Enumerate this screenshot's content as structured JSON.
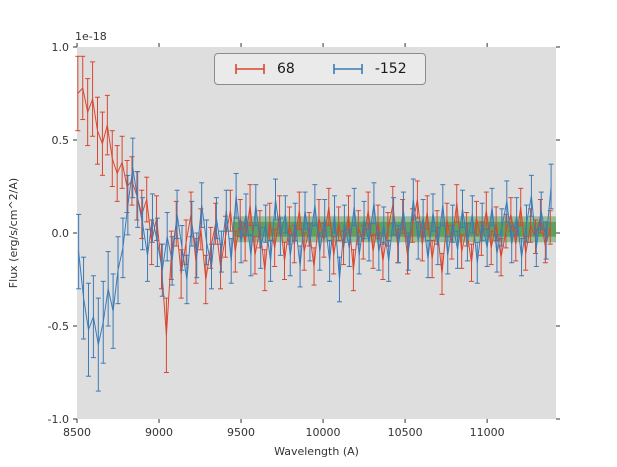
{
  "figure": {
    "background": "#ffffff",
    "axes_background": "#dedede",
    "tick_color": "#333333"
  },
  "chart_data": {
    "type": "line",
    "title": "",
    "offset_text": "1e-18",
    "xlabel": "Wavelength (A)",
    "ylabel": "Flux (erg/s/cm^2/A)",
    "xlim": [
      8500,
      11420
    ],
    "ylim": [
      -1.0,
      1.0
    ],
    "x_ticks": [
      8500,
      9000,
      9500,
      10000,
      10500,
      11000
    ],
    "y_ticks": [
      -1.0,
      -0.5,
      0.0,
      0.5,
      1.0
    ],
    "grid": false,
    "legend_position": "upper center",
    "bands": [
      {
        "x_start": 9450,
        "x_end": 11420,
        "y_low": -0.05,
        "y_high": 0.09,
        "color": "#2e8b2e",
        "opacity": 0.4
      },
      {
        "x_start": 9450,
        "x_end": 11420,
        "y_low": -0.02,
        "y_high": 0.06,
        "color": "#2e8b2e",
        "opacity": 0.55
      }
    ],
    "series": [
      {
        "name": "68",
        "color": "#d9462f",
        "x": [
          8505,
          8535,
          8565,
          8595,
          8625,
          8655,
          8685,
          8715,
          8745,
          8775,
          8805,
          8835,
          8865,
          8895,
          8925,
          8955,
          8985,
          9015,
          9045,
          9075,
          9105,
          9135,
          9165,
          9195,
          9225,
          9255,
          9285,
          9315,
          9345,
          9375,
          9405,
          9435,
          9465,
          9495,
          9525,
          9555,
          9585,
          9615,
          9645,
          9675,
          9705,
          9735,
          9765,
          9795,
          9825,
          9855,
          9885,
          9915,
          9945,
          9975,
          10005,
          10035,
          10065,
          10095,
          10125,
          10155,
          10185,
          10215,
          10245,
          10275,
          10305,
          10335,
          10365,
          10395,
          10425,
          10455,
          10485,
          10515,
          10545,
          10575,
          10605,
          10635,
          10665,
          10695,
          10725,
          10755,
          10785,
          10815,
          10845,
          10875,
          10905,
          10935,
          10965,
          10995,
          11025,
          11055,
          11085,
          11115,
          11145,
          11175,
          11205,
          11235,
          11265,
          11295,
          11325,
          11355,
          11385
        ],
        "y": [
          0.75,
          0.78,
          0.65,
          0.72,
          0.55,
          0.48,
          0.58,
          0.4,
          0.32,
          0.38,
          0.25,
          0.28,
          0.2,
          0.1,
          0.18,
          -0.05,
          0.08,
          -0.18,
          -0.55,
          -0.12,
          0.05,
          -0.22,
          -0.05,
          0.1,
          -0.15,
          0.02,
          -0.25,
          -0.08,
          0.05,
          -0.18,
          -0.02,
          0.12,
          -0.1,
          0.08,
          -0.05,
          0.15,
          -0.12,
          0.02,
          -0.2,
          0.06,
          -0.08,
          0.1,
          -0.15,
          0.04,
          -0.06,
          0.12,
          -0.1,
          0.02,
          -0.18,
          0.08,
          -0.04,
          0.14,
          -0.12,
          0.05,
          -0.08,
          0.1,
          -0.2,
          0.03,
          -0.05,
          0.12,
          -0.1,
          0.06,
          -0.15,
          0.02,
          0.15,
          -0.07,
          0.09,
          -0.12,
          0.04,
          0.18,
          -0.06,
          0.11,
          -0.14,
          0.03,
          -0.22,
          0.07,
          -0.05,
          0.16,
          -0.1,
          0.02,
          -0.16,
          0.08,
          -0.03,
          0.12,
          -0.08,
          0.05,
          -0.13,
          0.01,
          0.1,
          -0.06,
          0.14,
          -0.11,
          0.04,
          -0.02,
          0.09,
          -0.07,
          0.03
        ],
        "yerr": [
          0.2,
          0.17,
          0.18,
          0.2,
          0.18,
          0.17,
          0.16,
          0.15,
          0.15,
          0.14,
          0.14,
          0.13,
          0.13,
          0.13,
          0.12,
          0.12,
          0.12,
          0.12,
          0.2,
          0.13,
          0.12,
          0.13,
          0.12,
          0.12,
          0.12,
          0.11,
          0.13,
          0.11,
          0.11,
          0.12,
          0.11,
          0.11,
          0.11,
          0.1,
          0.1,
          0.11,
          0.1,
          0.1,
          0.11,
          0.1,
          0.1,
          0.1,
          0.1,
          0.1,
          0.1,
          0.1,
          0.1,
          0.09,
          0.1,
          0.1,
          0.09,
          0.1,
          0.1,
          0.09,
          0.09,
          0.1,
          0.11,
          0.09,
          0.09,
          0.1,
          0.09,
          0.09,
          0.1,
          0.09,
          0.1,
          0.09,
          0.09,
          0.1,
          0.09,
          0.1,
          0.09,
          0.09,
          0.1,
          0.09,
          0.11,
          0.09,
          0.09,
          0.1,
          0.09,
          0.09,
          0.1,
          0.09,
          0.09,
          0.1,
          0.09,
          0.09,
          0.1,
          0.09,
          0.09,
          0.09,
          0.1,
          0.09,
          0.09,
          0.09,
          0.09,
          0.09,
          0.09
        ]
      },
      {
        "name": "-152",
        "color": "#3c7ab6",
        "x": [
          8510,
          8540,
          8570,
          8600,
          8630,
          8660,
          8690,
          8720,
          8750,
          8780,
          8810,
          8840,
          8870,
          8900,
          8930,
          8960,
          8990,
          9020,
          9050,
          9080,
          9110,
          9140,
          9170,
          9200,
          9230,
          9260,
          9290,
          9320,
          9350,
          9380,
          9410,
          9440,
          9470,
          9500,
          9530,
          9560,
          9590,
          9620,
          9650,
          9680,
          9710,
          9740,
          9770,
          9800,
          9830,
          9860,
          9890,
          9920,
          9950,
          9980,
          10010,
          10040,
          10070,
          10100,
          10130,
          10160,
          10190,
          10220,
          10250,
          10280,
          10310,
          10340,
          10370,
          10400,
          10430,
          10460,
          10490,
          10520,
          10550,
          10580,
          10610,
          10640,
          10670,
          10700,
          10730,
          10760,
          10790,
          10820,
          10850,
          10880,
          10910,
          10940,
          10970,
          11000,
          11030,
          11060,
          11090,
          11120,
          11150,
          11180,
          11210,
          11240,
          11270,
          11300,
          11330,
          11360,
          11390
        ],
        "y": [
          -0.1,
          -0.35,
          -0.52,
          -0.45,
          -0.6,
          -0.48,
          -0.3,
          -0.42,
          -0.2,
          -0.08,
          0.15,
          0.35,
          0.18,
          0.05,
          -0.12,
          0.08,
          -0.05,
          -0.2,
          -0.02,
          -0.15,
          0.1,
          -0.08,
          -0.25,
          0.05,
          -0.12,
          0.15,
          -0.05,
          -0.18,
          0.08,
          -0.1,
          0.12,
          -0.15,
          0.2,
          -0.05,
          0.1,
          -0.12,
          0.15,
          -0.08,
          0.05,
          -0.15,
          0.18,
          -0.02,
          0.1,
          -0.12,
          0.06,
          -0.18,
          0.12,
          -0.05,
          0.15,
          -0.1,
          0.08,
          -0.15,
          0.1,
          -0.25,
          0.05,
          -0.08,
          0.14,
          -0.12,
          0.07,
          -0.05,
          0.16,
          -0.1,
          0.04,
          -0.15,
          0.09,
          -0.06,
          0.12,
          -0.1,
          0.18,
          -0.04,
          0.08,
          -0.14,
          0.11,
          -0.07,
          0.15,
          -0.12,
          0.05,
          -0.09,
          0.13,
          -0.05,
          0.1,
          -0.16,
          0.06,
          -0.08,
          0.14,
          -0.11,
          0.03,
          0.17,
          -0.06,
          0.09,
          -0.13,
          0.05,
          0.2,
          -0.08,
          0.12,
          -0.04,
          0.25
        ],
        "yerr": [
          0.2,
          0.22,
          0.25,
          0.22,
          0.25,
          0.22,
          0.2,
          0.2,
          0.18,
          0.16,
          0.16,
          0.16,
          0.15,
          0.14,
          0.14,
          0.13,
          0.13,
          0.14,
          0.13,
          0.13,
          0.13,
          0.12,
          0.13,
          0.12,
          0.12,
          0.12,
          0.12,
          0.12,
          0.11,
          0.11,
          0.11,
          0.12,
          0.12,
          0.11,
          0.11,
          0.11,
          0.11,
          0.11,
          0.1,
          0.11,
          0.11,
          0.1,
          0.1,
          0.11,
          0.1,
          0.11,
          0.1,
          0.1,
          0.11,
          0.1,
          0.1,
          0.11,
          0.1,
          0.12,
          0.1,
          0.1,
          0.1,
          0.1,
          0.1,
          0.1,
          0.11,
          0.1,
          0.1,
          0.11,
          0.1,
          0.1,
          0.1,
          0.1,
          0.11,
          0.1,
          0.1,
          0.1,
          0.1,
          0.1,
          0.11,
          0.1,
          0.1,
          0.1,
          0.1,
          0.1,
          0.1,
          0.11,
          0.1,
          0.1,
          0.1,
          0.1,
          0.1,
          0.11,
          0.1,
          0.1,
          0.1,
          0.1,
          0.11,
          0.1,
          0.1,
          0.1,
          0.12
        ]
      }
    ]
  }
}
